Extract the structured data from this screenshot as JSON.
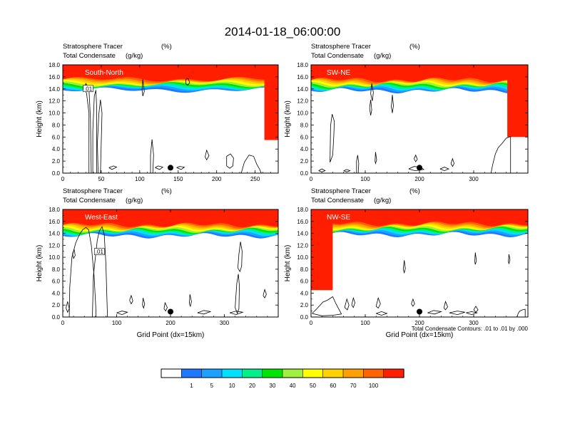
{
  "figure": {
    "title": "2014-01-18_06:00:00",
    "footnote": "Total Condensate Contours: .01 to .01 by .000"
  },
  "colorbar": {
    "colors": [
      "#ffffff",
      "#1e78ff",
      "#1ea0ff",
      "#00e0ff",
      "#00f08c",
      "#00e600",
      "#a0f040",
      "#ffff00",
      "#ffd200",
      "#ffa000",
      "#ff6400",
      "#ff1e00"
    ],
    "labels": [
      "1",
      "5",
      "10",
      "20",
      "30",
      "40",
      "50",
      "60",
      "70",
      "100"
    ],
    "label_positions": [
      1,
      2,
      3,
      4,
      5,
      6,
      7,
      8,
      9,
      10
    ]
  },
  "chart_data": [
    {
      "type": "heatmap",
      "panel": "South-North",
      "subtitle_left_1": "Stratosphere Tracer",
      "subtitle_right_1": "(%)",
      "subtitle_left_2": "Total Condensate",
      "subtitle_right_2": "(g/kg)",
      "ylabel": "Height (km)",
      "xlabel": "",
      "xlim": [
        0,
        280
      ],
      "ylim": [
        0,
        18
      ],
      "xticks": [
        0,
        50,
        100,
        150,
        200,
        250
      ],
      "yticks": [
        0,
        2,
        4,
        6,
        8,
        10,
        12,
        14,
        16,
        18
      ],
      "ytick_labels": [
        "0.0",
        "2.0",
        "4.0",
        "6.0",
        "8.0",
        "10.0",
        "12.0",
        "14.0",
        "16.0",
        "18.0"
      ],
      "contour_label": ".01",
      "contour_label_at": [
        33,
        14.0
      ],
      "marker": [
        140,
        0.9
      ],
      "tropopause_km": 15.6,
      "intrusion": {
        "x_start": 262,
        "bottom_km": 5.5
      }
    },
    {
      "type": "heatmap",
      "panel": "SW-NE",
      "subtitle_left_1": "Stratosphere Tracer",
      "subtitle_right_1": "(%)",
      "subtitle_left_2": "Total Condensate",
      "subtitle_right_2": "(g/kg)",
      "ylabel": "Height (km)",
      "xlabel": "",
      "xlim": [
        0,
        400
      ],
      "ylim": [
        0,
        18
      ],
      "xticks": [
        0,
        100,
        200,
        300
      ],
      "yticks": [
        0,
        2,
        4,
        6,
        8,
        10,
        12,
        14,
        16,
        18
      ],
      "ytick_labels": [
        "0.0",
        "2.0",
        "4.0",
        "6.0",
        "8.0",
        "10.0",
        "12.0",
        "14.0",
        "16.0",
        "18.0"
      ],
      "contour_label": "",
      "marker": [
        200,
        0.9
      ],
      "tropopause_km": 15.5,
      "intrusion": {
        "x_start": 362,
        "bottom_km": 6.0
      }
    },
    {
      "type": "heatmap",
      "panel": "West-East",
      "subtitle_left_1": "Stratosphere Tracer",
      "subtitle_right_1": "(%)",
      "subtitle_left_2": "Total Condensate",
      "subtitle_right_2": "(g/kg)",
      "ylabel": "Height (km)",
      "xlabel": "Grid Point (dx=15km)",
      "xlim": [
        0,
        400
      ],
      "ylim": [
        0,
        18
      ],
      "xticks": [
        0,
        100,
        200,
        300
      ],
      "yticks": [
        0,
        2,
        4,
        6,
        8,
        10,
        12,
        14,
        16,
        18
      ],
      "ytick_labels": [
        "0.0",
        "2.0",
        "4.0",
        "6.0",
        "8.0",
        "10.0",
        "12.0",
        "14.0",
        "16.0",
        "18.0"
      ],
      "contour_label": ".01",
      "contour_label_at": [
        68,
        10.9
      ],
      "marker": [
        200,
        0.9
      ],
      "tropopause_km": 15.4
    },
    {
      "type": "heatmap",
      "panel": "NW-SE",
      "subtitle_left_1": "Stratosphere Tracer",
      "subtitle_right_1": "(%)",
      "subtitle_left_2": "Total Condensate",
      "subtitle_right_2": "(g/kg)",
      "ylabel": "Height (km)",
      "xlabel": "Grid Point (dx=15km)",
      "xlim": [
        0,
        400
      ],
      "ylim": [
        0,
        18
      ],
      "xticks": [
        0,
        100,
        200,
        300
      ],
      "yticks": [
        0,
        2,
        4,
        6,
        8,
        10,
        12,
        14,
        16,
        18
      ],
      "ytick_labels": [
        "0.0",
        "2.0",
        "4.0",
        "6.0",
        "8.0",
        "10.0",
        "12.0",
        "14.0",
        "16.0",
        "18.0"
      ],
      "contour_label": "",
      "marker": [
        200,
        0.9
      ],
      "tropopause_km": 15.6,
      "intrusion": {
        "x_end": 40,
        "bottom_km": 4.5
      }
    }
  ]
}
